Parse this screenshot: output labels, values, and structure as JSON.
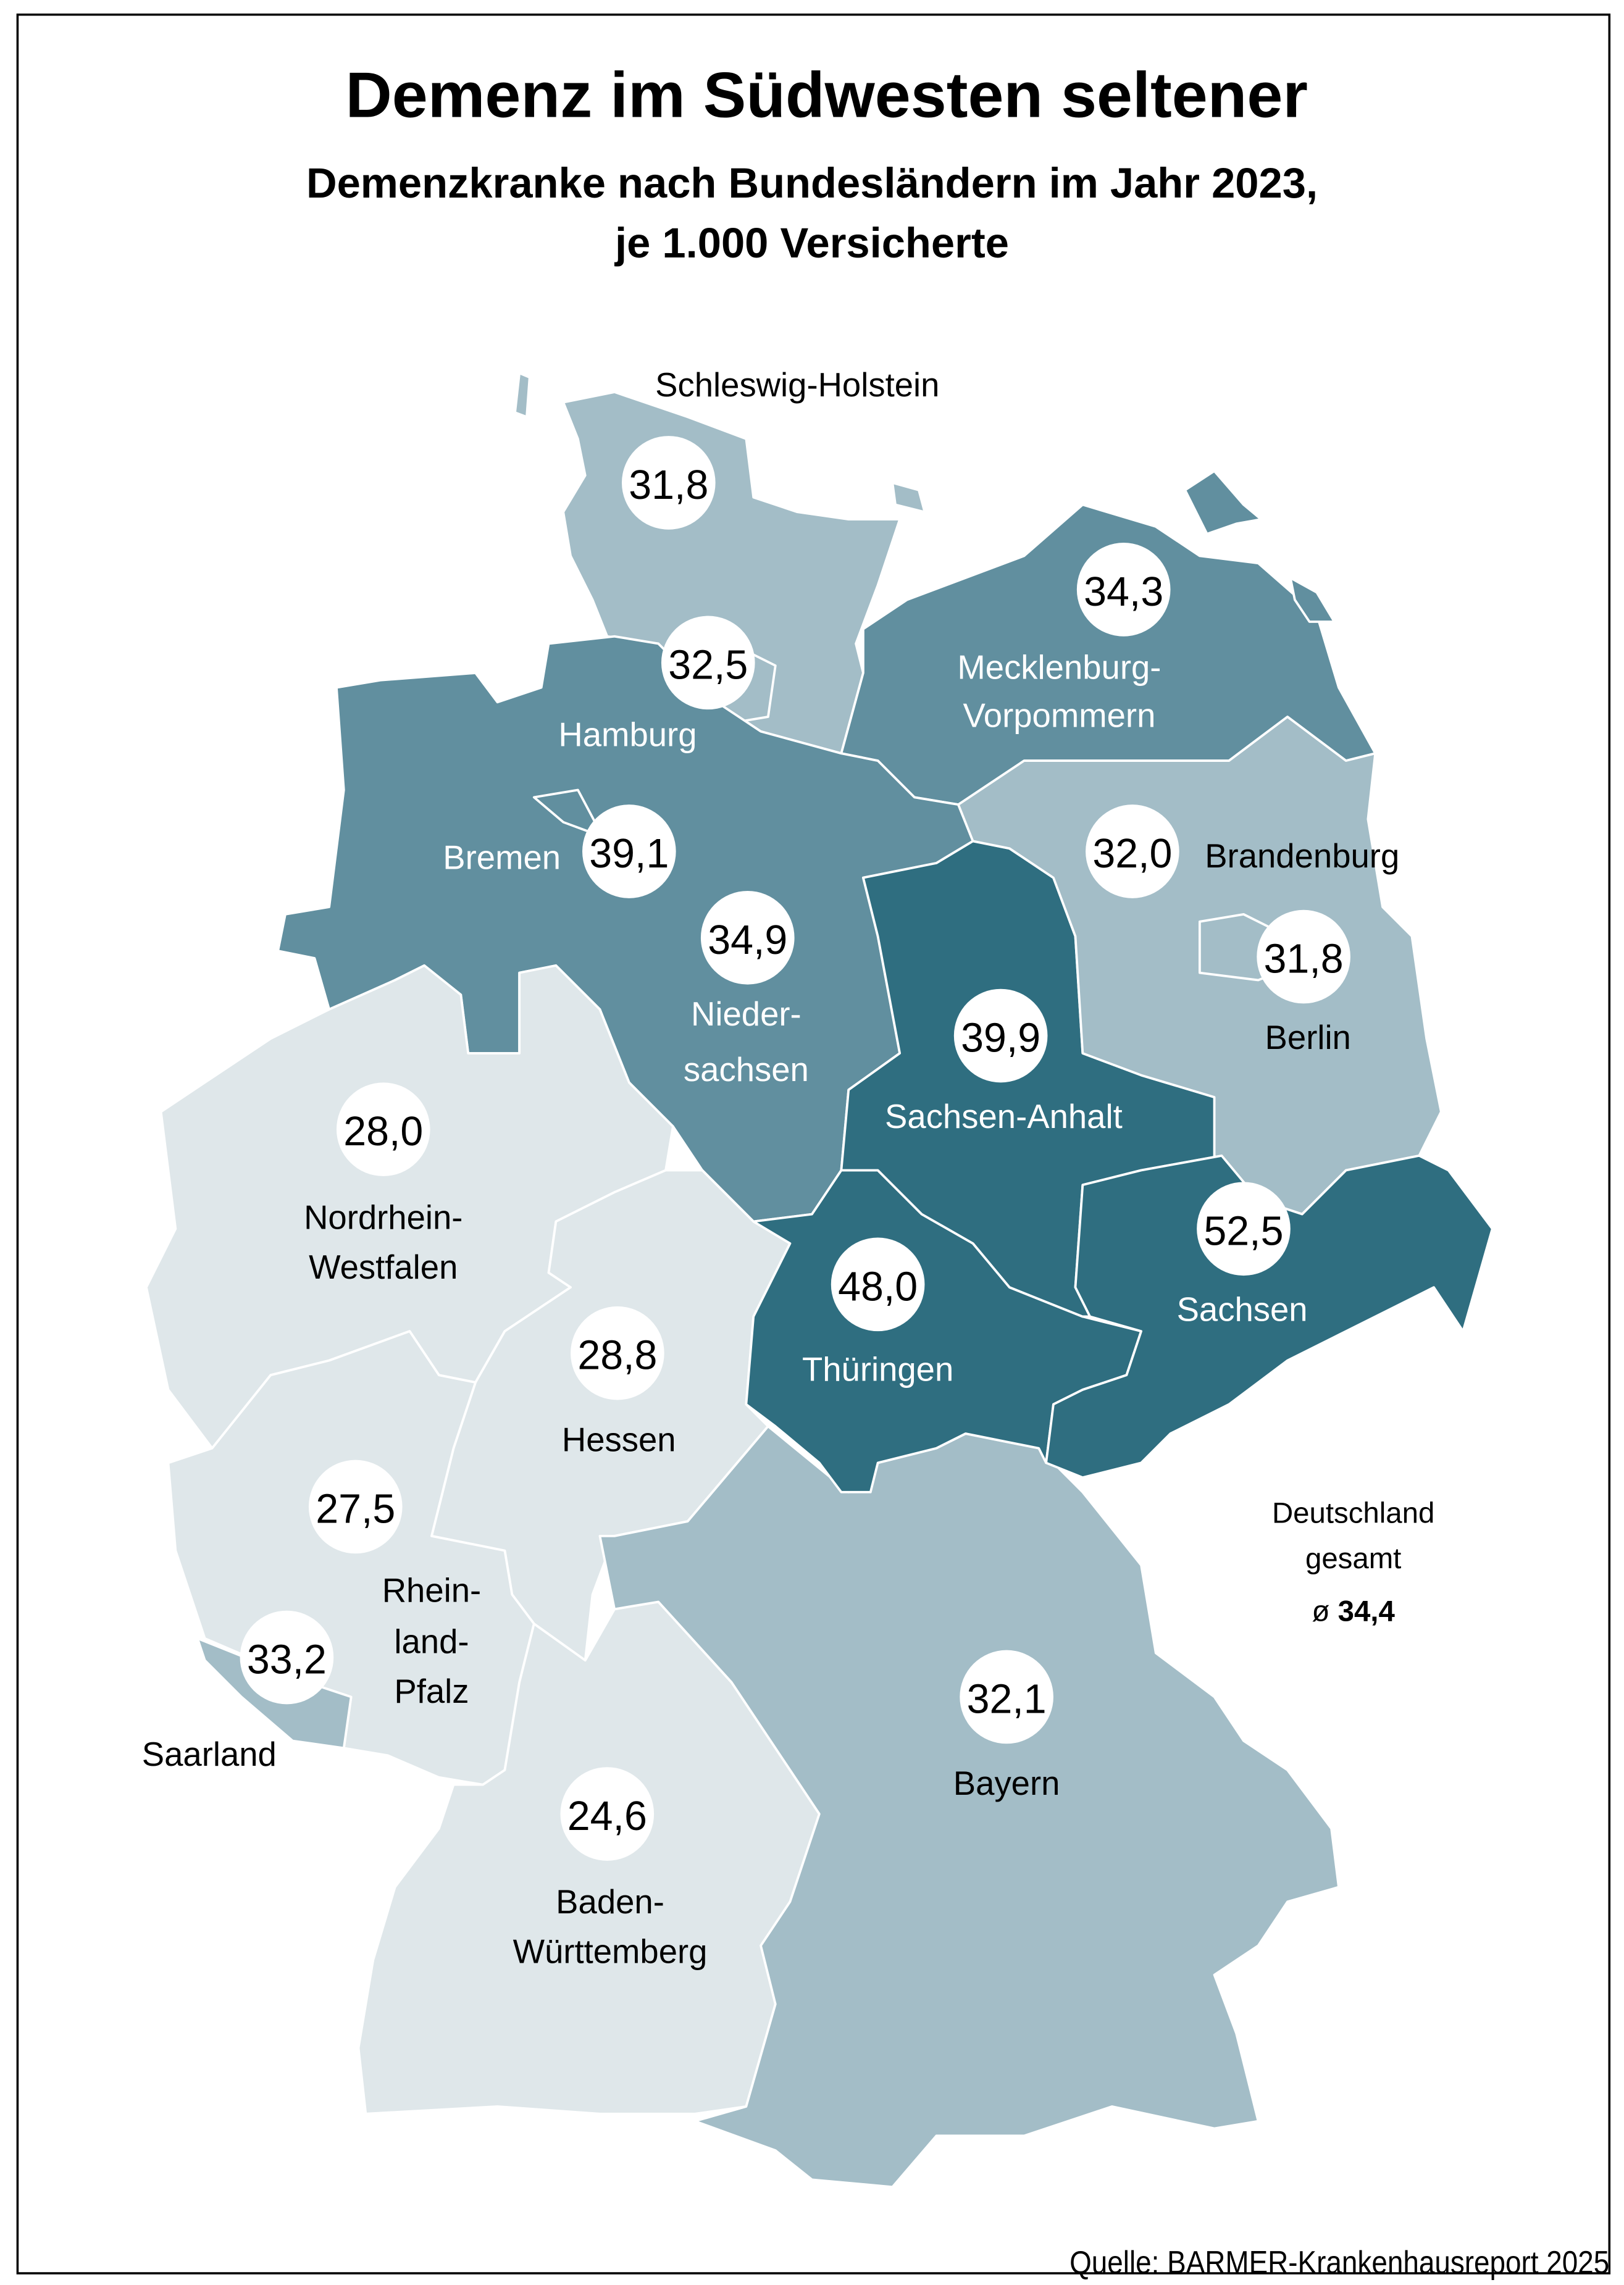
{
  "title": "Demenz im Südwesten seltener",
  "subtitle_line1": "Demenzkranke nach Bundesländern im Jahr 2023,",
  "subtitle_line2": "je 1.000 Versicherte",
  "national": {
    "line1": "Deutschland",
    "line2": "gesamt",
    "prefix": "ø",
    "value": "34,4"
  },
  "source": "Quelle: BARMER-Krankenhausreport 2025",
  "chart_data": {
    "type": "choropleth",
    "title": "Demenz im Südwesten seltener",
    "unit": "je 1.000 Versicherte",
    "regions": [
      {
        "id": "sh",
        "name": "Schleswig-Holstein",
        "value_label": "31,8",
        "value": 31.8,
        "color": "#a3bdc7"
      },
      {
        "id": "hh",
        "name": "Hamburg",
        "value_label": "32,5",
        "value": 32.5,
        "color": "#a3bdc7"
      },
      {
        "id": "mv",
        "name": "Mecklenburg-Vorpommern",
        "name_lines": [
          "Mecklenburg-",
          "Vorpommern"
        ],
        "value_label": "34,3",
        "value": 34.3,
        "color": "#618f9f"
      },
      {
        "id": "hb",
        "name": "Bremen",
        "value_label": "39,1",
        "value": 39.1,
        "color": "#618f9f"
      },
      {
        "id": "ni",
        "name": "Niedersachsen",
        "name_lines": [
          "Nieder-",
          "sachsen"
        ],
        "value_label": "34,9",
        "value": 34.9,
        "color": "#618f9f"
      },
      {
        "id": "bb",
        "name": "Brandenburg",
        "value_label": "32,0",
        "value": 32.0,
        "color": "#a3bdc7"
      },
      {
        "id": "be",
        "name": "Berlin",
        "value_label": "31,8",
        "value": 31.8,
        "color": "#a3bdc7"
      },
      {
        "id": "st",
        "name": "Sachsen-Anhalt",
        "value_label": "39,9",
        "value": 39.9,
        "color": "#2f6e80"
      },
      {
        "id": "nw",
        "name": "Nordrhein-Westfalen",
        "name_lines": [
          "Nordrhein-",
          "Westfalen"
        ],
        "value_label": "28,0",
        "value": 28.0,
        "color": "#dfe7ea"
      },
      {
        "id": "sn",
        "name": "Sachsen",
        "value_label": "52,5",
        "value": 52.5,
        "color": "#2f6e80"
      },
      {
        "id": "th",
        "name": "Thüringen",
        "value_label": "48,0",
        "value": 48.0,
        "color": "#2f6e80"
      },
      {
        "id": "he",
        "name": "Hessen",
        "value_label": "28,8",
        "value": 28.8,
        "color": "#dfe7ea"
      },
      {
        "id": "rp",
        "name": "Rheinland-Pfalz",
        "name_lines": [
          "Rhein-",
          "land-",
          "Pfalz"
        ],
        "value_label": "27,5",
        "value": 27.5,
        "color": "#dfe7ea"
      },
      {
        "id": "sl",
        "name": "Saarland",
        "value_label": "33,2",
        "value": 33.2,
        "color": "#a3bdc7"
      },
      {
        "id": "by",
        "name": "Bayern",
        "value_label": "32,1",
        "value": 32.1,
        "color": "#a3bdc7"
      },
      {
        "id": "bw",
        "name": "Baden-Württemberg",
        "name_lines": [
          "Baden-",
          "Württemberg"
        ],
        "value_label": "24,6",
        "value": 24.6,
        "color": "#dfe7ea"
      }
    ]
  }
}
